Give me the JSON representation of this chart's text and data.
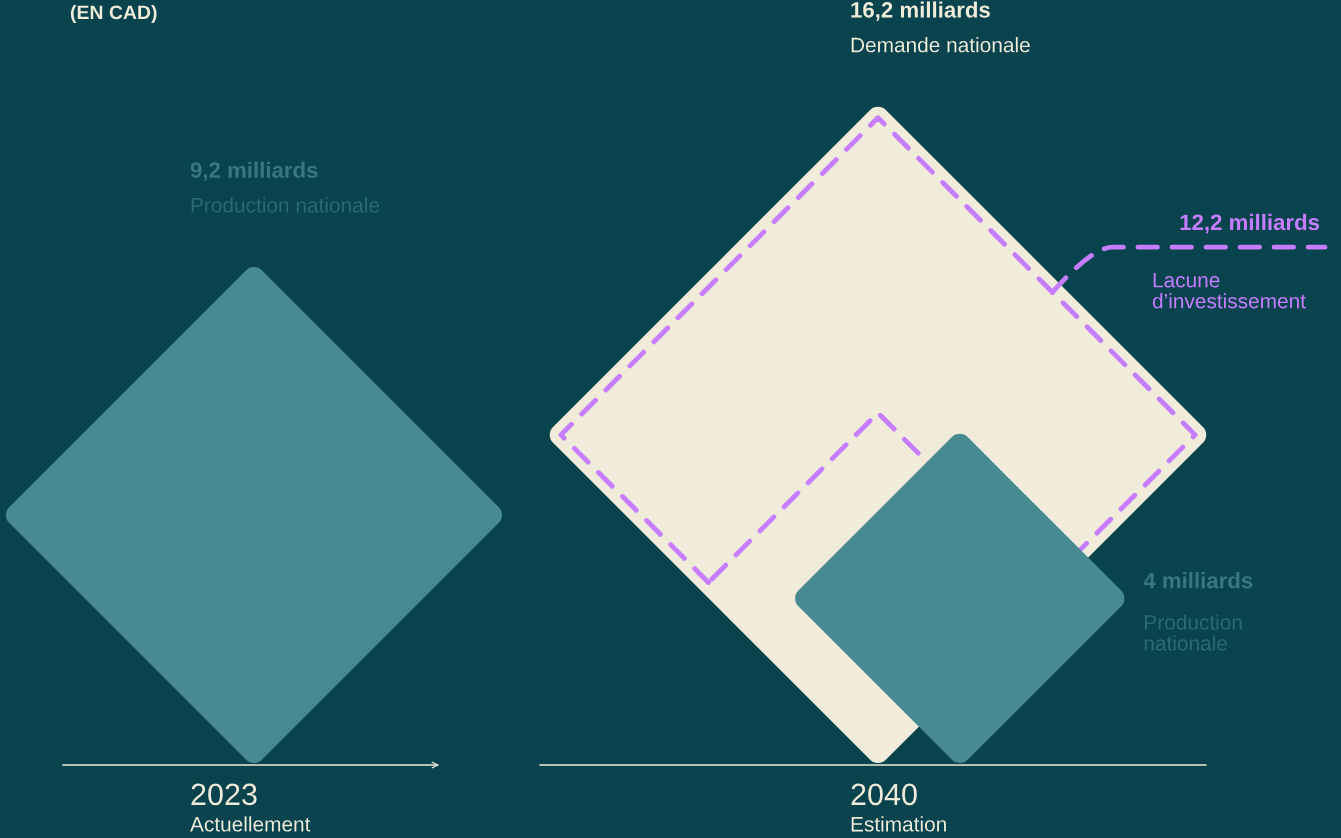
{
  "chart_data": {
    "type": "other",
    "subtitle": "(EN CAD)",
    "categories": [
      "2023",
      "2040"
    ],
    "annotations": [
      "Actuellement",
      "Estimation"
    ],
    "series": [
      {
        "name": "Demande nationale",
        "color": "#f1ebd9",
        "values": [
          null,
          16.2
        ],
        "value_labels": [
          null,
          "16,2 milliards"
        ]
      },
      {
        "name": "Production nationale",
        "color": "#478a91",
        "values": [
          9.2,
          4
        ],
        "value_labels": [
          "9,2 milliards",
          "4 milliards"
        ]
      },
      {
        "name": "Lacune d’investissement",
        "color": "#c77dff",
        "values": [
          null,
          12.2
        ],
        "value_labels": [
          null,
          "12,2 milliards"
        ],
        "line_style": "dashed"
      }
    ]
  }
}
